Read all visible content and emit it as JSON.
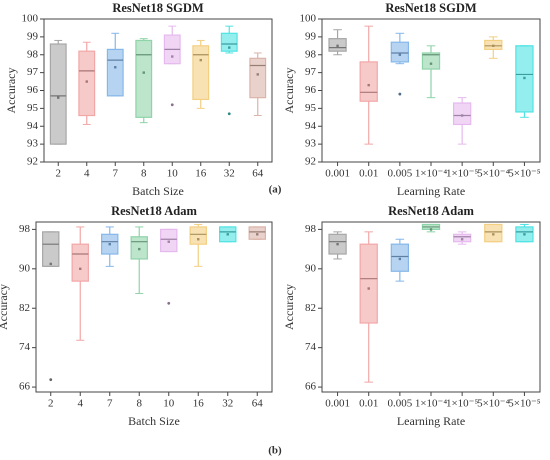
{
  "panels": [
    "(a)",
    "(b)"
  ],
  "chart_data": [
    {
      "type": "box",
      "title": "ResNet18 SGDM",
      "xlabel": "Batch Size",
      "ylabel": "Accuracy",
      "categories": [
        "2",
        "4",
        "7",
        "8",
        "10",
        "16",
        "32",
        "64"
      ],
      "colors": [
        "#a6a6a6",
        "#f2a7a7",
        "#86b7ea",
        "#8fd3a9",
        "#e6b9ee",
        "#f3cf82",
        "#4fe3e3",
        "#dbb4a8"
      ],
      "boxes": [
        {
          "min": 93.0,
          "q1": 93.0,
          "median": 95.7,
          "q3": 98.6,
          "max": 98.8,
          "mean": 95.6,
          "outliers": []
        },
        {
          "min": 94.1,
          "q1": 94.6,
          "median": 97.1,
          "q3": 98.2,
          "max": 98.7,
          "mean": 96.5,
          "outliers": []
        },
        {
          "min": 95.7,
          "q1": 95.7,
          "median": 97.7,
          "q3": 98.3,
          "max": 99.2,
          "mean": 97.3,
          "outliers": []
        },
        {
          "min": 94.2,
          "q1": 94.5,
          "median": 98.0,
          "q3": 98.8,
          "max": 98.9,
          "mean": 97.0,
          "outliers": []
        },
        {
          "min": 97.5,
          "q1": 97.5,
          "median": 98.3,
          "q3": 99.1,
          "max": 99.6,
          "mean": 97.9,
          "outliers": [
            95.2
          ]
        },
        {
          "min": 95.0,
          "q1": 95.5,
          "median": 98.0,
          "q3": 98.5,
          "max": 98.8,
          "mean": 97.7,
          "outliers": []
        },
        {
          "min": 98.1,
          "q1": 98.2,
          "median": 98.6,
          "q3": 99.2,
          "max": 99.6,
          "mean": 98.4,
          "outliers": [
            94.7
          ]
        },
        {
          "min": 94.6,
          "q1": 95.6,
          "median": 97.4,
          "q3": 97.8,
          "max": 98.1,
          "mean": 96.9,
          "outliers": []
        }
      ],
      "ylim": [
        92,
        100
      ],
      "yticks": [
        92,
        93,
        94,
        95,
        96,
        97,
        98,
        99,
        100
      ]
    },
    {
      "type": "box",
      "title": "ResNet18 SGDM",
      "xlabel": "Learning Rate",
      "ylabel": "Accuracy",
      "categories": [
        "0.001",
        "0.01",
        "0.005",
        "1×10⁻⁴",
        "1×10⁻⁵",
        "5×10⁻⁴",
        "5×10⁻⁵"
      ],
      "colors": [
        "#a6a6a6",
        "#f2a7a7",
        "#86b7ea",
        "#8fd3a9",
        "#e6b9ee",
        "#f3cf82",
        "#4fe3e3"
      ],
      "boxes": [
        {
          "min": 98.0,
          "q1": 98.2,
          "median": 98.4,
          "q3": 98.9,
          "max": 99.4,
          "mean": 98.5,
          "outliers": []
        },
        {
          "min": 93.0,
          "q1": 95.4,
          "median": 95.9,
          "q3": 97.6,
          "max": 99.6,
          "mean": 96.3,
          "outliers": []
        },
        {
          "min": 97.5,
          "q1": 97.6,
          "median": 98.1,
          "q3": 98.7,
          "max": 99.2,
          "mean": 98.0,
          "outliers": [
            95.8
          ]
        },
        {
          "min": 95.6,
          "q1": 97.2,
          "median": 98.0,
          "q3": 98.1,
          "max": 98.5,
          "mean": 97.5,
          "outliers": []
        },
        {
          "min": 93.0,
          "q1": 94.1,
          "median": 94.6,
          "q3": 95.3,
          "max": 95.6,
          "mean": 94.6,
          "outliers": []
        },
        {
          "min": 97.8,
          "q1": 98.3,
          "median": 98.5,
          "q3": 98.8,
          "max": 99.0,
          "mean": 98.5,
          "outliers": []
        },
        {
          "min": 94.5,
          "q1": 94.8,
          "median": 96.9,
          "q3": 98.5,
          "max": 98.5,
          "mean": 96.7,
          "outliers": []
        }
      ],
      "ylim": [
        92,
        100
      ],
      "yticks": [
        92,
        93,
        94,
        95,
        96,
        97,
        98,
        99,
        100
      ]
    },
    {
      "type": "box",
      "title": "ResNet18 Adam",
      "xlabel": "Batch Size",
      "ylabel": "Accuracy",
      "categories": [
        "2",
        "4",
        "7",
        "8",
        "10",
        "16",
        "32",
        "64"
      ],
      "colors": [
        "#a6a6a6",
        "#f2a7a7",
        "#86b7ea",
        "#8fd3a9",
        "#e6b9ee",
        "#f3cf82",
        "#4fe3e3",
        "#dbb4a8"
      ],
      "boxes": [
        {
          "min": 90.5,
          "q1": 90.5,
          "median": 95.0,
          "q3": 97.5,
          "max": 97.5,
          "mean": 91.0,
          "outliers": [
            67.5
          ]
        },
        {
          "min": 75.5,
          "q1": 87.5,
          "median": 93.0,
          "q3": 95.0,
          "max": 98.5,
          "mean": 90.0,
          "outliers": []
        },
        {
          "min": 90.5,
          "q1": 93.0,
          "median": 95.5,
          "q3": 97.0,
          "max": 98.5,
          "mean": 95.0,
          "outliers": []
        },
        {
          "min": 85.0,
          "q1": 92.0,
          "median": 95.5,
          "q3": 96.5,
          "max": 98.5,
          "mean": 94.0,
          "outliers": []
        },
        {
          "min": 93.5,
          "q1": 93.5,
          "median": 96.0,
          "q3": 98.0,
          "max": 98.0,
          "mean": 95.5,
          "outliers": [
            83.0
          ]
        },
        {
          "min": 90.5,
          "q1": 95.0,
          "median": 97.0,
          "q3": 98.5,
          "max": 99.0,
          "mean": 96.0,
          "outliers": []
        },
        {
          "min": 95.5,
          "q1": 95.5,
          "median": 97.5,
          "q3": 98.5,
          "max": 98.5,
          "mean": 97.0,
          "outliers": []
        },
        {
          "min": 96.0,
          "q1": 96.0,
          "median": 97.5,
          "q3": 98.5,
          "max": 98.5,
          "mean": 97.0,
          "outliers": []
        }
      ],
      "ylim": [
        65,
        99.5
      ],
      "yticks": [
        66,
        74,
        82,
        90,
        98
      ]
    },
    {
      "type": "box",
      "title": "ResNet18 Adam",
      "xlabel": "Learning Rate",
      "ylabel": "Accuracy",
      "categories": [
        "0.001",
        "0.01",
        "0.005",
        "1×10⁻⁴",
        "1×10⁻⁵",
        "5×10⁻⁴",
        "5×10⁻⁵"
      ],
      "colors": [
        "#a6a6a6",
        "#f2a7a7",
        "#86b7ea",
        "#8fd3a9",
        "#e6b9ee",
        "#f3cf82",
        "#4fe3e3"
      ],
      "boxes": [
        {
          "min": 92.0,
          "q1": 93.0,
          "median": 95.5,
          "q3": 97.0,
          "max": 97.5,
          "mean": 95.0,
          "outliers": []
        },
        {
          "min": 67.0,
          "q1": 79.0,
          "median": 88.0,
          "q3": 95.0,
          "max": 97.5,
          "mean": 86.0,
          "outliers": []
        },
        {
          "min": 87.5,
          "q1": 89.5,
          "median": 92.5,
          "q3": 95.0,
          "max": 96.0,
          "mean": 92.0,
          "outliers": []
        },
        {
          "min": 97.5,
          "q1": 98.0,
          "median": 98.5,
          "q3": 99.0,
          "max": 99.0,
          "mean": 98.0,
          "outliers": []
        },
        {
          "min": 95.0,
          "q1": 95.5,
          "median": 96.5,
          "q3": 97.0,
          "max": 97.5,
          "mean": 96.0,
          "outliers": []
        },
        {
          "min": 95.5,
          "q1": 95.5,
          "median": 97.5,
          "q3": 99.0,
          "max": 99.0,
          "mean": 97.0,
          "outliers": []
        },
        {
          "min": 95.5,
          "q1": 95.5,
          "median": 97.5,
          "q3": 98.5,
          "max": 99.0,
          "mean": 97.0,
          "outliers": []
        }
      ],
      "ylim": [
        65,
        99.5
      ],
      "yticks": [
        66,
        74,
        82,
        90,
        98
      ]
    }
  ]
}
